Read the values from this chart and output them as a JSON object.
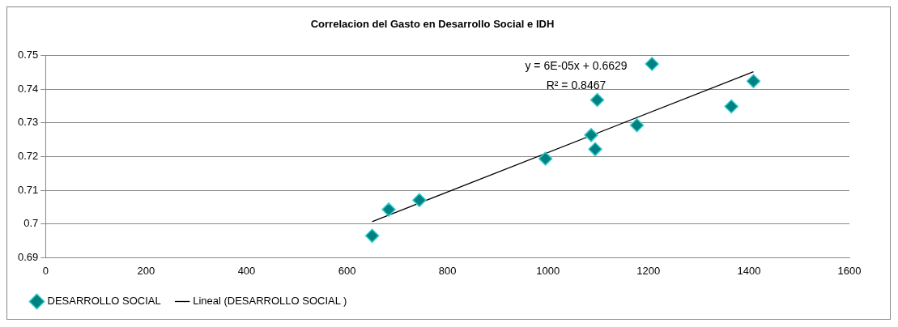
{
  "chart_data": {
    "type": "scatter",
    "title": "Correlacion del Gasto en Desarrollo Social e IDH",
    "series": [
      {
        "name": "DESARROLLO SOCIAL",
        "type": "scatter",
        "color": "#008080",
        "marker": "diamond",
        "x": [
          650,
          683,
          744,
          995,
          1086,
          1094,
          1098,
          1177,
          1207,
          1365,
          1409
        ],
        "values": [
          0.6965,
          0.7043,
          0.7071,
          0.7194,
          0.7264,
          0.7222,
          0.7368,
          0.7293,
          0.7475,
          0.7349,
          0.7424
        ]
      },
      {
        "name": "Lineal (DESARROLLO SOCIAL )",
        "type": "line",
        "color": "#000000",
        "marker": "none",
        "line_style": "solid",
        "x": [
          650,
          1409
        ],
        "values": [
          0.7007,
          0.7452
        ]
      }
    ],
    "annotations": [
      "y = 6E-05x + 0.6629",
      "R² = 0.8467"
    ],
    "xlim": [
      0,
      1600
    ],
    "xticks": [
      0,
      200,
      400,
      600,
      800,
      1000,
      1200,
      1400,
      1600
    ],
    "ylim": [
      0.69,
      0.75
    ],
    "yticks": [
      0.69,
      0.7,
      0.71,
      0.72,
      0.73,
      0.74,
      0.75
    ],
    "grid": "y",
    "legend": "bottom"
  }
}
